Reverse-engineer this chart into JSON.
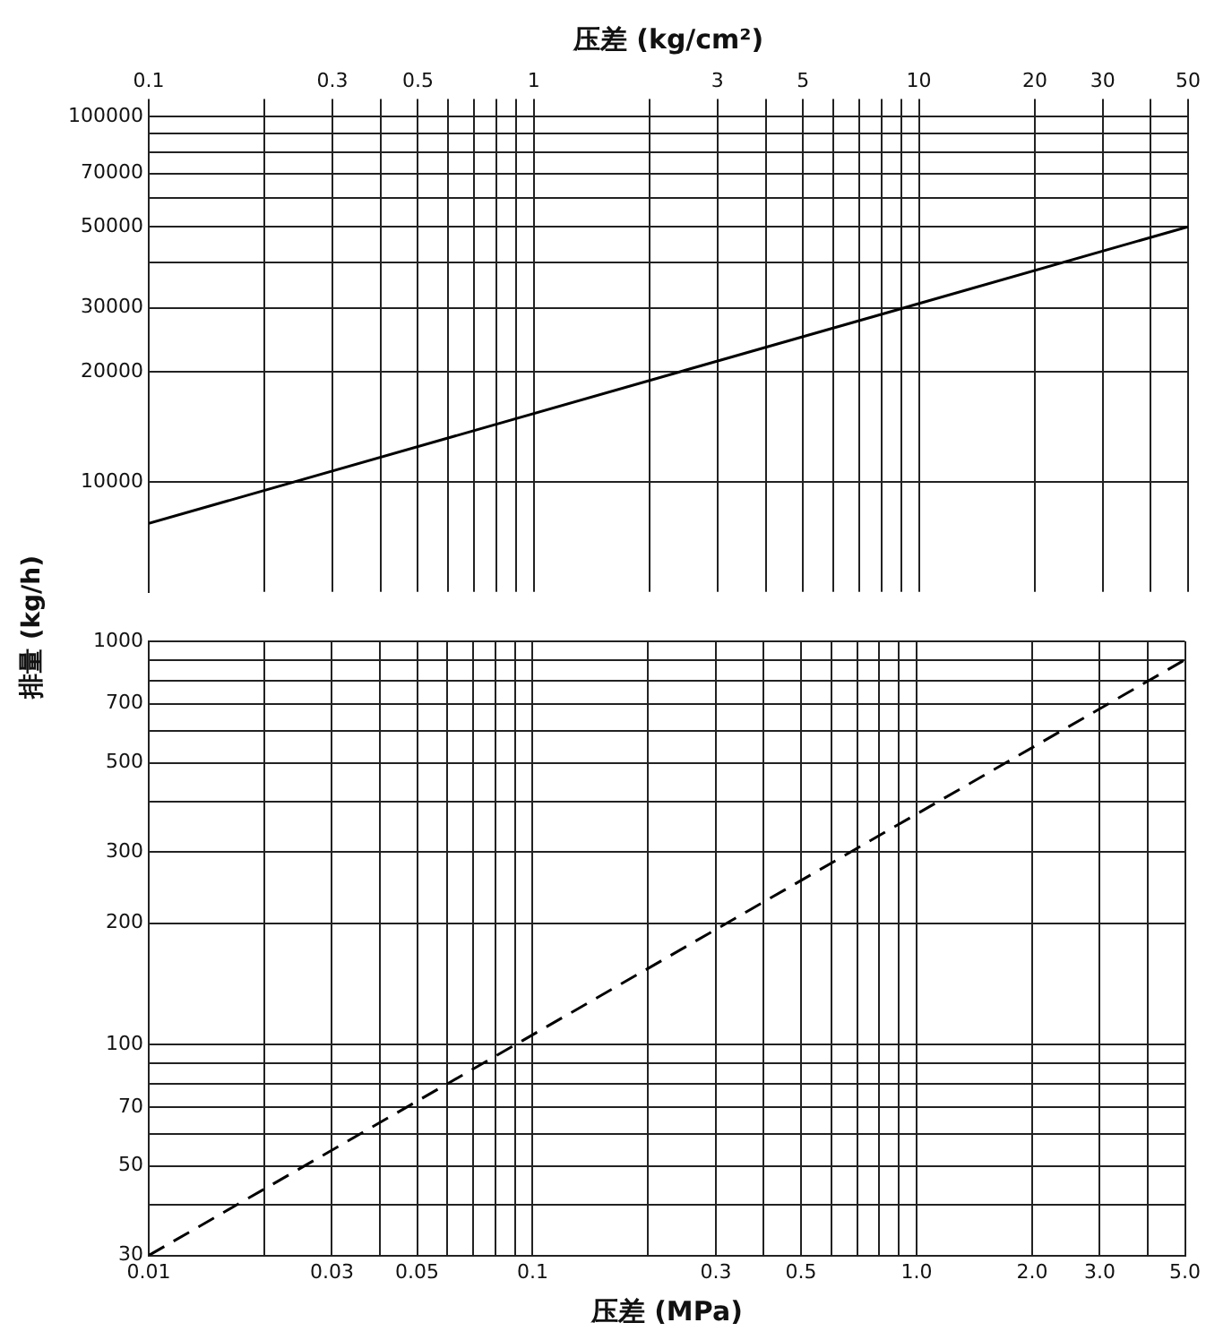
{
  "chart_data": [
    {
      "type": "line",
      "xlabel": "压差 (kg/cm²)",
      "ylabel": "排量 (kg/h)",
      "xlim": [
        0.1,
        50
      ],
      "xticks": [
        0.1,
        {
          "value": 0.2,
          "label": null
        },
        0.3,
        {
          "value": 0.4,
          "label": null
        },
        0.5,
        {
          "value": 0.6,
          "label": null
        },
        {
          "value": 0.7,
          "label": null
        },
        {
          "value": 0.8,
          "label": null
        },
        {
          "value": 0.9,
          "label": null
        },
        1,
        {
          "value": 2,
          "label": null
        },
        3,
        {
          "value": 4,
          "label": null
        },
        5,
        {
          "value": 6,
          "label": null
        },
        {
          "value": 7,
          "label": null
        },
        {
          "value": 8,
          "label": null
        },
        {
          "value": 9,
          "label": null
        },
        10,
        20,
        30,
        {
          "value": 40,
          "label": null
        },
        50
      ],
      "ylim": [
        5000,
        100000
      ],
      "yticks": [
        10000,
        20000,
        30000,
        {
          "value": 40000,
          "label": null
        },
        50000,
        {
          "value": 60000,
          "label": null
        },
        70000,
        {
          "value": 80000,
          "label": null
        },
        {
          "value": 90000,
          "label": null
        },
        100000
      ],
      "log": "xy",
      "grid": true,
      "legend": false,
      "marker": "none",
      "series": [
        {
          "color": "#000000",
          "x": [
            0.1,
            50
          ],
          "values": [
            7700,
            50000
          ],
          "line_style": "solid"
        }
      ]
    },
    {
      "type": "line",
      "xlabel": "压差 (MPa)",
      "xlim": [
        0.01,
        5
      ],
      "xticks": [
        0.01,
        {
          "value": 0.02,
          "label": null
        },
        0.03,
        {
          "value": 0.04,
          "label": null
        },
        0.05,
        {
          "value": 0.06,
          "label": null
        },
        {
          "value": 0.07,
          "label": null
        },
        {
          "value": 0.08,
          "label": null
        },
        {
          "value": 0.09,
          "label": null
        },
        0.1,
        {
          "value": 0.2,
          "label": null
        },
        0.3,
        {
          "value": 0.4,
          "label": null
        },
        0.5,
        {
          "value": 0.6,
          "label": null
        },
        {
          "value": 0.7,
          "label": null
        },
        {
          "value": 0.8,
          "label": null
        },
        {
          "value": 0.9,
          "label": null
        },
        {
          "value": 1,
          "label": "1.0"
        },
        {
          "value": 2,
          "label": "2.0"
        },
        {
          "value": 3,
          "label": "3.0"
        },
        {
          "value": 4,
          "label": null
        },
        {
          "value": 5,
          "label": "5.0"
        }
      ],
      "ylim": [
        30,
        1000
      ],
      "yticks": [
        30,
        {
          "value": 40,
          "label": null
        },
        50,
        {
          "value": 60,
          "label": null
        },
        70,
        {
          "value": 80,
          "label": null
        },
        {
          "value": 90,
          "label": null
        },
        100,
        200,
        300,
        {
          "value": 400,
          "label": null
        },
        500,
        {
          "value": 600,
          "label": null
        },
        700,
        {
          "value": 800,
          "label": null
        },
        {
          "value": 900,
          "label": null
        },
        1000
      ],
      "log": "xy",
      "grid": true,
      "legend": false,
      "marker": "none",
      "series": [
        {
          "color": "#000000",
          "x": [
            0.01,
            5
          ],
          "values": [
            30,
            900
          ],
          "line_style": "dashed"
        }
      ]
    }
  ]
}
